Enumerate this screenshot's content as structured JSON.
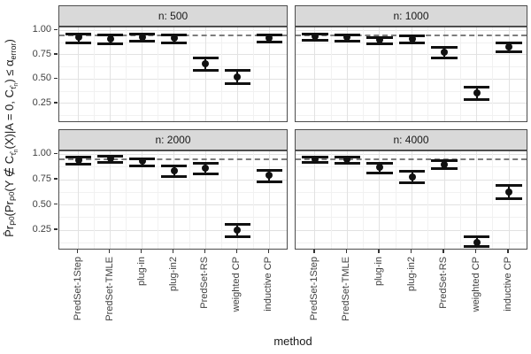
{
  "chart_data": {
    "type": "pointrange",
    "facet_variable": "n",
    "xlabel": "method",
    "ylabel": "P̂r_P0( Pr_P0( Y ∉ C_τ̂n(X) | A = 0, C_τ̂n ) ≤ α_error )",
    "ylabel_parts": [
      {
        "t": "P̂r",
        "c": "n"
      },
      {
        "t": "P",
        "c": "s"
      },
      {
        "t": "0",
        "c": "ss"
      },
      {
        "t": "(Pr",
        "c": "n"
      },
      {
        "t": "P",
        "c": "s"
      },
      {
        "t": "0",
        "c": "ss"
      },
      {
        "t": "(Y ∉ C",
        "c": "n"
      },
      {
        "t": "τ̂",
        "c": "s"
      },
      {
        "t": "n",
        "c": "s2"
      },
      {
        "t": "(X)|A = 0, C",
        "c": "n"
      },
      {
        "t": "τ̂",
        "c": "s"
      },
      {
        "t": "n",
        "c": "s2"
      },
      {
        "t": ") ≤ α",
        "c": "n"
      },
      {
        "t": "error",
        "c": "s"
      },
      {
        "t": ")",
        "c": "n"
      }
    ],
    "categories": [
      "PredSet-1Step",
      "PredSet-TMLE",
      "plug-in",
      "plug-in2",
      "PredSet-RS",
      "weighted CP",
      "inductive CP"
    ],
    "y_ticks": [
      {
        "v": 1.0,
        "label": "1.00"
      },
      {
        "v": 0.75,
        "label": "0.75"
      },
      {
        "v": 0.5,
        "label": "0.50"
      },
      {
        "v": 0.25,
        "label": "0.25"
      }
    ],
    "y_minor": [
      0.875,
      0.625,
      0.375,
      0.125
    ],
    "ylim": [
      0.05,
      1.03
    ],
    "ref_line": 0.95,
    "legend": "none",
    "grid": true,
    "facets": [
      {
        "label": "n: 500",
        "points": [
          {
            "method": "PredSet-1Step",
            "est": 0.93,
            "lo": 0.87,
            "hi": 0.96
          },
          {
            "method": "PredSet-TMLE",
            "est": 0.91,
            "lo": 0.86,
            "hi": 0.95
          },
          {
            "method": "plug-in",
            "est": 0.93,
            "lo": 0.89,
            "hi": 0.96
          },
          {
            "method": "plug-in2",
            "est": 0.92,
            "lo": 0.87,
            "hi": 0.95
          },
          {
            "method": "PredSet-RS",
            "est": 0.66,
            "lo": 0.59,
            "hi": 0.72
          },
          {
            "method": "weighted CP",
            "est": 0.52,
            "lo": 0.45,
            "hi": 0.59
          },
          {
            "method": "inductive CP",
            "est": 0.92,
            "lo": 0.88,
            "hi": 0.95
          }
        ]
      },
      {
        "label": "n: 1000",
        "points": [
          {
            "method": "PredSet-1Step",
            "est": 0.94,
            "lo": 0.9,
            "hi": 0.96
          },
          {
            "method": "PredSet-TMLE",
            "est": 0.93,
            "lo": 0.89,
            "hi": 0.95
          },
          {
            "method": "plug-in",
            "est": 0.9,
            "lo": 0.86,
            "hi": 0.93
          },
          {
            "method": "plug-in2",
            "est": 0.91,
            "lo": 0.87,
            "hi": 0.94
          },
          {
            "method": "PredSet-RS",
            "est": 0.78,
            "lo": 0.72,
            "hi": 0.83
          },
          {
            "method": "weighted CP",
            "est": 0.36,
            "lo": 0.29,
            "hi": 0.42
          },
          {
            "method": "inductive CP",
            "est": 0.83,
            "lo": 0.78,
            "hi": 0.87
          }
        ]
      },
      {
        "label": "n: 2000",
        "points": [
          {
            "method": "PredSet-1Step",
            "est": 0.94,
            "lo": 0.9,
            "hi": 0.97
          },
          {
            "method": "PredSet-TMLE",
            "est": 0.96,
            "lo": 0.92,
            "hi": 0.98
          },
          {
            "method": "plug-in",
            "est": 0.93,
            "lo": 0.89,
            "hi": 0.96
          },
          {
            "method": "plug-in2",
            "est": 0.84,
            "lo": 0.78,
            "hi": 0.89
          },
          {
            "method": "PredSet-RS",
            "est": 0.86,
            "lo": 0.81,
            "hi": 0.91
          },
          {
            "method": "weighted CP",
            "est": 0.25,
            "lo": 0.19,
            "hi": 0.31
          },
          {
            "method": "inductive CP",
            "est": 0.79,
            "lo": 0.73,
            "hi": 0.84
          }
        ]
      },
      {
        "label": "n: 4000",
        "points": [
          {
            "method": "PredSet-1Step",
            "est": 0.95,
            "lo": 0.92,
            "hi": 0.97
          },
          {
            "method": "PredSet-TMLE",
            "est": 0.95,
            "lo": 0.91,
            "hi": 0.97
          },
          {
            "method": "plug-in",
            "est": 0.87,
            "lo": 0.82,
            "hi": 0.91
          },
          {
            "method": "plug-in2",
            "est": 0.78,
            "lo": 0.72,
            "hi": 0.83
          },
          {
            "method": "PredSet-RS",
            "est": 0.9,
            "lo": 0.86,
            "hi": 0.94
          },
          {
            "method": "weighted CP",
            "est": 0.13,
            "lo": 0.09,
            "hi": 0.19
          },
          {
            "method": "inductive CP",
            "est": 0.63,
            "lo": 0.56,
            "hi": 0.69
          }
        ]
      }
    ],
    "colors": {
      "strip_fill": "#d9d9d9",
      "panel_border": "#4d4d4d",
      "grid_major": "#e2e2e2",
      "grid_minor": "#f1f1f1",
      "reference_line": "#7d7d7d",
      "point": "#111111",
      "axis_text": "#404040",
      "axis_title": "#1a1a1a"
    }
  }
}
